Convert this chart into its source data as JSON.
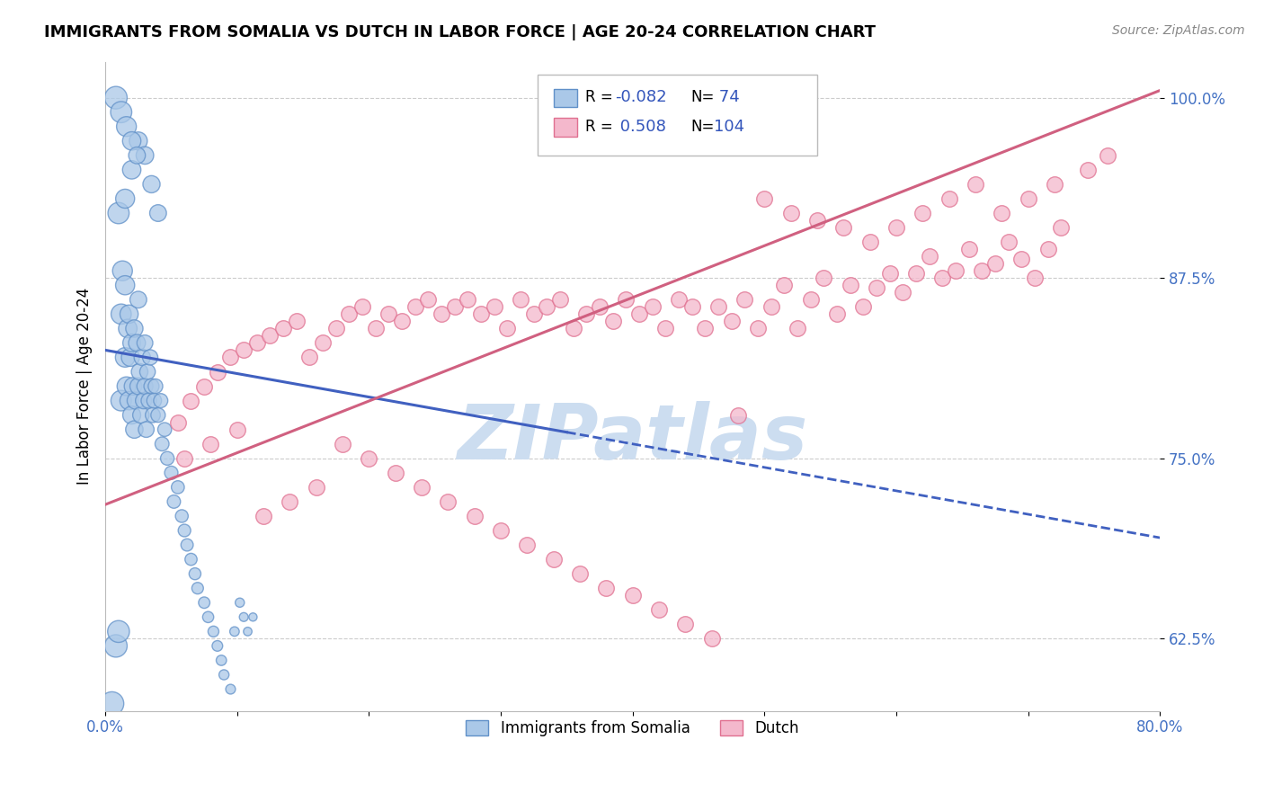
{
  "title": "IMMIGRANTS FROM SOMALIA VS DUTCH IN LABOR FORCE | AGE 20-24 CORRELATION CHART",
  "source": "Source: ZipAtlas.com",
  "ylabel": "In Labor Force | Age 20-24",
  "xlim": [
    0.0,
    0.8
  ],
  "ylim": [
    0.575,
    1.025
  ],
  "xticks": [
    0.0,
    0.1,
    0.2,
    0.3,
    0.4,
    0.5,
    0.6,
    0.7,
    0.8
  ],
  "xticklabels": [
    "0.0%",
    "",
    "",
    "",
    "",
    "",
    "",
    "",
    "80.0%"
  ],
  "yticks": [
    0.625,
    0.75,
    0.875,
    1.0
  ],
  "yticklabels": [
    "62.5%",
    "75.0%",
    "87.5%",
    "100.0%"
  ],
  "blue_color": "#aac8e8",
  "pink_color": "#f4b8cc",
  "blue_edge_color": "#6090c8",
  "pink_edge_color": "#e07090",
  "blue_line_color": "#4060c0",
  "pink_line_color": "#d06080",
  "watermark": "ZIPatlas",
  "watermark_color": "#ccddf0",
  "blue_r": "-0.082",
  "blue_n": "74",
  "pink_r": "0.508",
  "pink_n": "104",
  "blue_scatter_x": [
    0.005,
    0.008,
    0.01,
    0.01,
    0.012,
    0.012,
    0.013,
    0.015,
    0.015,
    0.015,
    0.016,
    0.017,
    0.018,
    0.018,
    0.019,
    0.02,
    0.02,
    0.021,
    0.022,
    0.022,
    0.023,
    0.024,
    0.025,
    0.025,
    0.026,
    0.027,
    0.028,
    0.029,
    0.03,
    0.03,
    0.031,
    0.032,
    0.033,
    0.034,
    0.035,
    0.036,
    0.037,
    0.038,
    0.04,
    0.042,
    0.043,
    0.045,
    0.047,
    0.05,
    0.052,
    0.055,
    0.058,
    0.06,
    0.062,
    0.065,
    0.068,
    0.07,
    0.075,
    0.078,
    0.082,
    0.085,
    0.088,
    0.09,
    0.095,
    0.098,
    0.102,
    0.105,
    0.108,
    0.112,
    0.02,
    0.025,
    0.03,
    0.035,
    0.04,
    0.008,
    0.012,
    0.016,
    0.02,
    0.024
  ],
  "blue_scatter_y": [
    0.58,
    0.62,
    0.63,
    0.92,
    0.79,
    0.85,
    0.88,
    0.82,
    0.87,
    0.93,
    0.8,
    0.84,
    0.79,
    0.85,
    0.82,
    0.78,
    0.83,
    0.8,
    0.77,
    0.84,
    0.79,
    0.83,
    0.8,
    0.86,
    0.81,
    0.78,
    0.82,
    0.79,
    0.8,
    0.83,
    0.77,
    0.81,
    0.79,
    0.82,
    0.8,
    0.78,
    0.79,
    0.8,
    0.78,
    0.79,
    0.76,
    0.77,
    0.75,
    0.74,
    0.72,
    0.73,
    0.71,
    0.7,
    0.69,
    0.68,
    0.67,
    0.66,
    0.65,
    0.64,
    0.63,
    0.62,
    0.61,
    0.6,
    0.59,
    0.63,
    0.65,
    0.64,
    0.63,
    0.64,
    0.95,
    0.97,
    0.96,
    0.94,
    0.92,
    1.0,
    0.99,
    0.98,
    0.97,
    0.96
  ],
  "blue_scatter_size": [
    200,
    180,
    170,
    160,
    150,
    145,
    140,
    135,
    130,
    128,
    125,
    122,
    120,
    118,
    116,
    114,
    112,
    110,
    108,
    106,
    104,
    102,
    100,
    100,
    98,
    96,
    95,
    94,
    92,
    90,
    88,
    86,
    85,
    84,
    82,
    80,
    78,
    76,
    74,
    72,
    70,
    68,
    66,
    64,
    62,
    60,
    58,
    56,
    54,
    52,
    50,
    48,
    46,
    44,
    42,
    40,
    38,
    36,
    34,
    32,
    30,
    28,
    26,
    24,
    120,
    115,
    110,
    105,
    100,
    180,
    160,
    140,
    120,
    100
  ],
  "pink_scatter_x": [
    0.055,
    0.065,
    0.075,
    0.085,
    0.095,
    0.105,
    0.115,
    0.125,
    0.135,
    0.145,
    0.155,
    0.165,
    0.175,
    0.185,
    0.195,
    0.205,
    0.215,
    0.225,
    0.235,
    0.245,
    0.255,
    0.265,
    0.275,
    0.285,
    0.295,
    0.305,
    0.315,
    0.325,
    0.335,
    0.345,
    0.355,
    0.365,
    0.375,
    0.385,
    0.395,
    0.405,
    0.415,
    0.425,
    0.435,
    0.445,
    0.455,
    0.465,
    0.475,
    0.485,
    0.495,
    0.505,
    0.515,
    0.525,
    0.535,
    0.545,
    0.555,
    0.565,
    0.575,
    0.585,
    0.595,
    0.605,
    0.615,
    0.625,
    0.635,
    0.645,
    0.655,
    0.665,
    0.675,
    0.685,
    0.695,
    0.705,
    0.715,
    0.725,
    0.06,
    0.08,
    0.1,
    0.12,
    0.14,
    0.16,
    0.18,
    0.2,
    0.22,
    0.24,
    0.26,
    0.28,
    0.3,
    0.32,
    0.34,
    0.36,
    0.38,
    0.4,
    0.42,
    0.44,
    0.46,
    0.48,
    0.5,
    0.52,
    0.54,
    0.56,
    0.58,
    0.6,
    0.62,
    0.64,
    0.66,
    0.68,
    0.7,
    0.72,
    0.745,
    0.76
  ],
  "pink_scatter_y": [
    0.775,
    0.79,
    0.8,
    0.81,
    0.82,
    0.825,
    0.83,
    0.835,
    0.84,
    0.845,
    0.82,
    0.83,
    0.84,
    0.85,
    0.855,
    0.84,
    0.85,
    0.845,
    0.855,
    0.86,
    0.85,
    0.855,
    0.86,
    0.85,
    0.855,
    0.84,
    0.86,
    0.85,
    0.855,
    0.86,
    0.84,
    0.85,
    0.855,
    0.845,
    0.86,
    0.85,
    0.855,
    0.84,
    0.86,
    0.855,
    0.84,
    0.855,
    0.845,
    0.86,
    0.84,
    0.855,
    0.87,
    0.84,
    0.86,
    0.875,
    0.85,
    0.87,
    0.855,
    0.868,
    0.878,
    0.865,
    0.878,
    0.89,
    0.875,
    0.88,
    0.895,
    0.88,
    0.885,
    0.9,
    0.888,
    0.875,
    0.895,
    0.91,
    0.75,
    0.76,
    0.77,
    0.71,
    0.72,
    0.73,
    0.76,
    0.75,
    0.74,
    0.73,
    0.72,
    0.71,
    0.7,
    0.69,
    0.68,
    0.67,
    0.66,
    0.655,
    0.645,
    0.635,
    0.625,
    0.78,
    0.93,
    0.92,
    0.915,
    0.91,
    0.9,
    0.91,
    0.92,
    0.93,
    0.94,
    0.92,
    0.93,
    0.94,
    0.95,
    0.96
  ]
}
